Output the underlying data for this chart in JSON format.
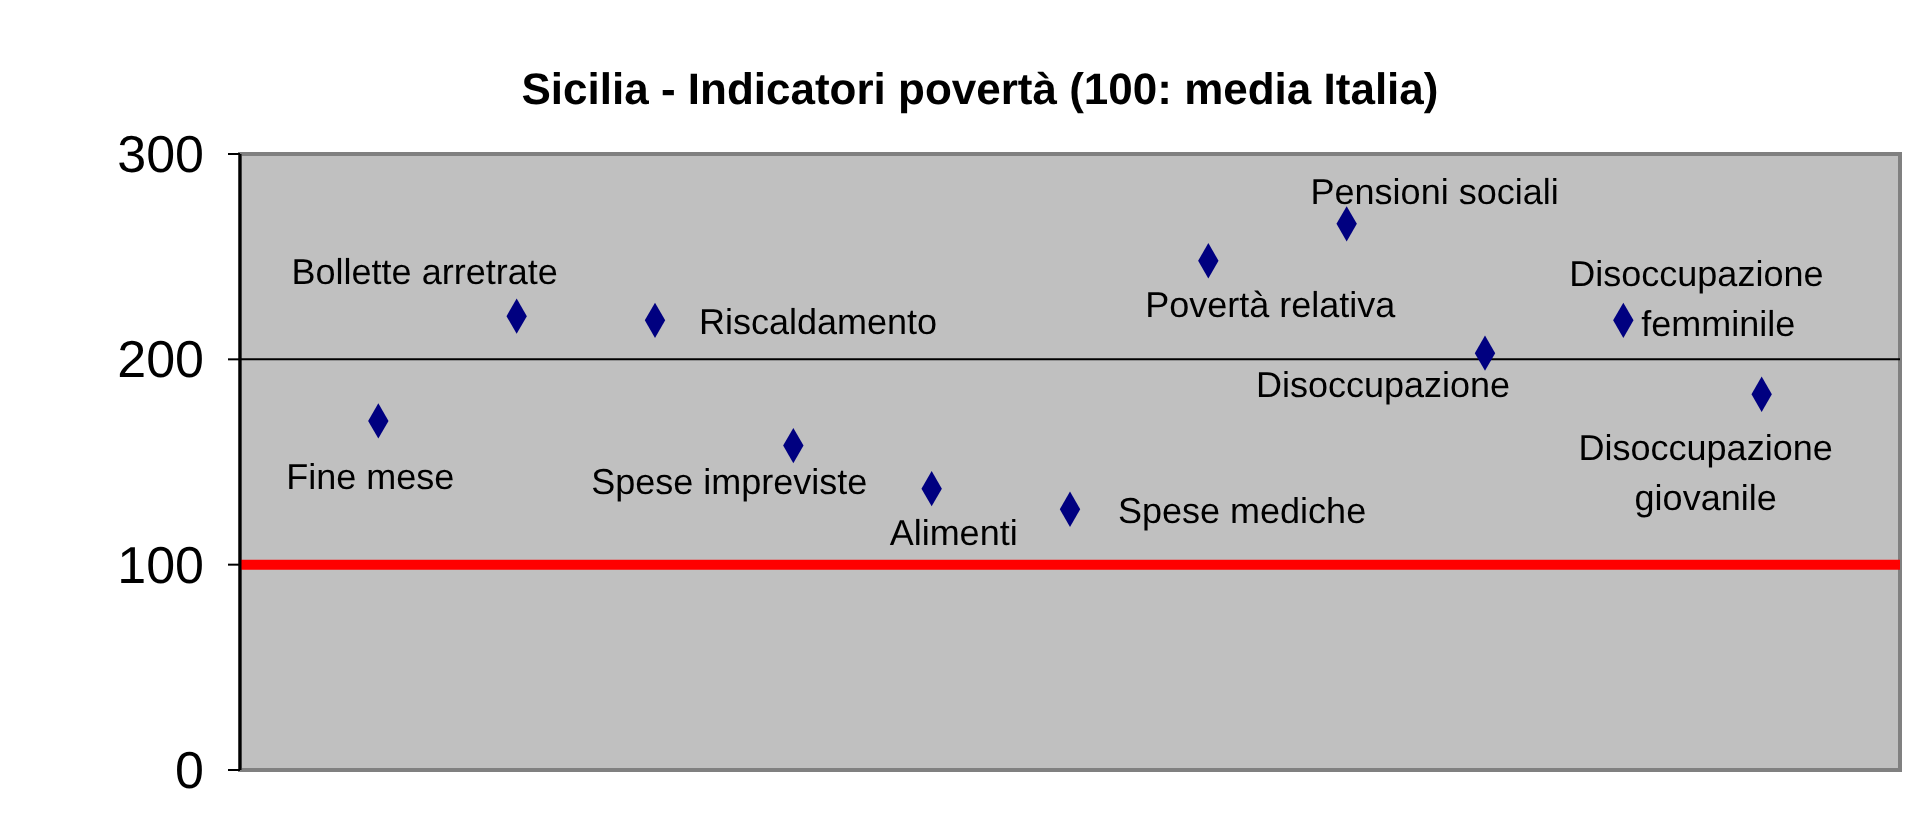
{
  "chart_data": {
    "type": "scatter",
    "title": "Sicilia - Indicatori povertà (100: media Italia)",
    "categories": [
      null,
      null,
      null,
      null,
      null,
      null,
      null,
      null,
      null,
      null,
      null
    ],
    "series": [
      {
        "color": "#000080",
        "values": [
          170,
          221,
          219,
          158,
          137,
          127,
          248,
          266,
          203,
          219,
          183
        ]
      }
    ],
    "annotations": [
      "Fine mese",
      "Bollette arretrate",
      "Riscaldamento",
      "Spese impreviste",
      "Alimenti",
      "Spese mediche",
      "Povertà relativa",
      "Pensioni sociali",
      "Disoccupazione",
      "Disoccupazione femminile",
      "Disoccupazione giovanile"
    ],
    "ylim": [
      0,
      300
    ],
    "yticks": [
      0,
      100,
      200,
      300
    ],
    "marker": "diamond",
    "tick_labels": "y",
    "ref_lines": [
      {
        "axis": "y",
        "value": 100,
        "color": "#ff0000"
      },
      {
        "axis": "y",
        "value": 200,
        "color": "#000000"
      }
    ]
  }
}
